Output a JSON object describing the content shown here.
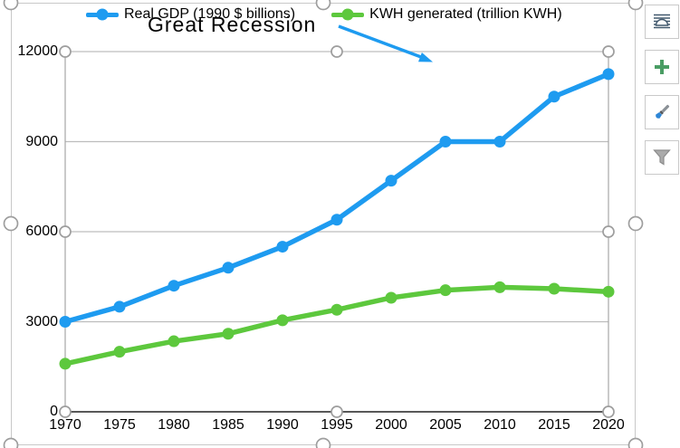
{
  "chart_data": {
    "type": "line",
    "x": [
      "1970",
      "1975",
      "1980",
      "1985",
      "1990",
      "1995",
      "2000",
      "2005",
      "2010",
      "2015",
      "2020"
    ],
    "series": [
      {
        "name": "Real GDP (1990 $ billions)",
        "color": "#1E9BF0",
        "values": [
          3000,
          3500,
          4200,
          4800,
          5500,
          6400,
          7700,
          9000,
          9000,
          10500,
          11250
        ]
      },
      {
        "name": "KWH generated (trillion KWH)",
        "color": "#5DC83D",
        "values": [
          1600,
          2000,
          2350,
          2600,
          3050,
          3400,
          3800,
          4050,
          4150,
          4100,
          4000
        ]
      }
    ],
    "ylim": [
      0,
      12000
    ],
    "ytick_step": 3000,
    "grid": true,
    "legend_position": "top",
    "annotation": {
      "text": "Great Recession",
      "arrow_color": "#1E9BF0"
    }
  },
  "colors": {
    "gridline": "#BDBDBD",
    "plot_border": "#A6A6A6",
    "axis_line": "#404040",
    "handle_stroke": "#9E9E9E",
    "frame_border": "#C8C8C8"
  },
  "side_toolbar": {
    "buttons": [
      {
        "icon": "layout-options-icon"
      },
      {
        "icon": "chart-elements-plus-icon"
      },
      {
        "icon": "chart-styles-brush-icon"
      },
      {
        "icon": "chart-filters-funnel-icon"
      }
    ]
  }
}
